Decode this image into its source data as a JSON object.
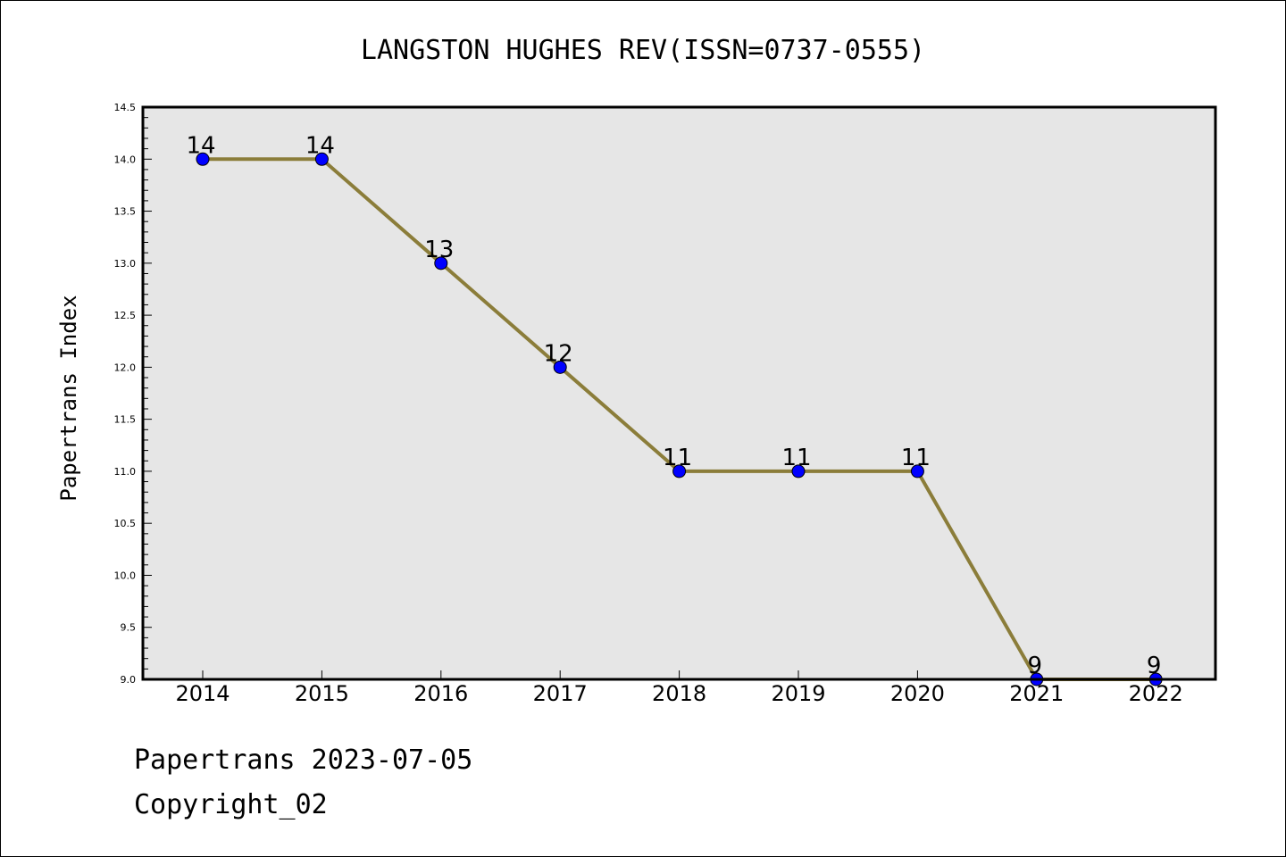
{
  "footer": {
    "line1": "Papertrans 2023-07-05",
    "line2": "Copyright_02"
  },
  "chart_data": {
    "type": "line",
    "title": "LANGSTON HUGHES REV(ISSN=0737-0555)",
    "xlabel": "",
    "ylabel": "Papertrans Index",
    "x": [
      "2014",
      "2015",
      "2016",
      "2017",
      "2018",
      "2019",
      "2020",
      "2021",
      "2022"
    ],
    "series": [
      {
        "values": [
          14,
          14,
          13,
          12,
          11,
          11,
          11,
          9,
          9
        ]
      }
    ],
    "data_labels": [
      "14",
      "14",
      "13",
      "12",
      "11",
      "11",
      "11",
      "9",
      "9"
    ],
    "ylim": [
      9.0,
      14.5
    ],
    "yticks": [
      "9.0",
      "9.5",
      "10.0",
      "10.5",
      "11.0",
      "11.5",
      "12.0",
      "12.5",
      "13.0",
      "13.5",
      "14.0",
      "14.5"
    ],
    "grid": false,
    "legend": "none",
    "colors": {
      "line": "#8b7d3a",
      "marker": "#0000ff",
      "plot_bg": "#e6e6e6"
    }
  }
}
